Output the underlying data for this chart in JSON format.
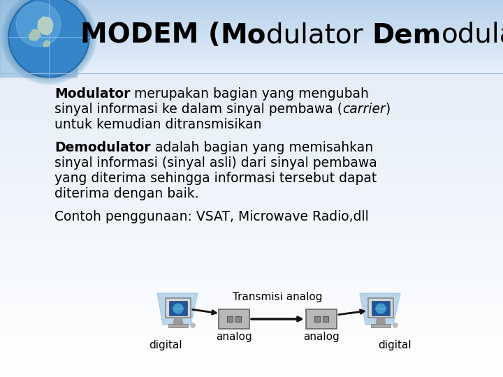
{
  "bg_header_color": "#c8daf0",
  "bg_body_color": "#e8f0f8",
  "bg_bottom_color": "#f0f4fc",
  "text_color": "#000000",
  "title_fontsize": 28,
  "body_fontsize": 13.5,
  "diagram_fontsize": 11,
  "para1_bold": "Modulator",
  "para1_rest1": " merupakan bagian yang mengubah",
  "para1_line2": "sinyal informasi ke dalam sinyal pembawa (",
  "para1_italic": "carrier",
  "para1_close": ")",
  "para1_line3": "untuk kemudian ditransmisikan",
  "para2_bold": "Demodulator",
  "para2_rest1": " adalah bagian yang memisahkan",
  "para2_line2": "sinyal informasi (sinyal asli) dari sinyal pembawa",
  "para2_line3": "yang diterima sehingga informasi tersebut dapat",
  "para2_line4": "diterima dengan baik.",
  "para3": "Contoh penggunaan: VSAT, Microwave Radio,dll",
  "diagram_label_transmisi": "Transmisi analog",
  "diagram_label_digital_left": "digital",
  "diagram_label_analog_left": "analog",
  "diagram_label_analog_right": "analog",
  "diagram_label_digital_right": "digital"
}
